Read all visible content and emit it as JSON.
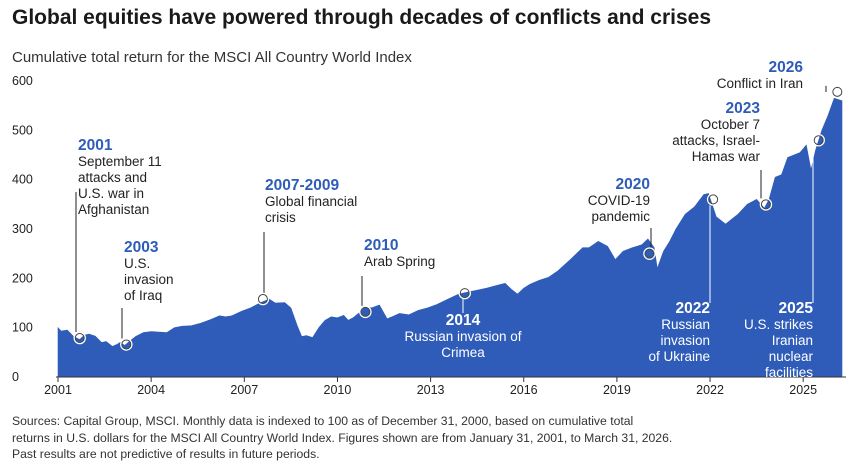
{
  "title": "Global equities have powered through decades of conflicts and crises",
  "subtitle": "Cumulative total return for the MSCI All Country World Index",
  "source_lines": [
    "Sources: Capital Group, MSCI. Monthly data is indexed to 100 as of December 31, 2000, based on cumulative total",
    "returns in U.S. dollars for the MSCI All Country World Index. Figures shown are from January 31, 2001, to March 31, 2026.",
    "Past results are not predictive of results in future periods."
  ],
  "colors": {
    "area": "#2e5cb8",
    "year": "#2e5cb8",
    "text": "#222222",
    "axis": "#333333"
  },
  "chart_data": {
    "type": "area",
    "title": "Global equities have powered through decades of conflicts and crises",
    "subtitle": "Cumulative total return for the MSCI All Country World Index",
    "xlim": [
      2001.0,
      2026.25
    ],
    "ylim": [
      0,
      600
    ],
    "xticks": [
      2001,
      2004,
      2007,
      2010,
      2013,
      2016,
      2019,
      2022,
      2025
    ],
    "yticks": [
      0,
      100,
      200,
      300,
      400,
      500,
      600
    ],
    "grid": false,
    "series": [
      {
        "x": [
          2001.0,
          2001.1,
          2001.3,
          2001.5,
          2001.7,
          2001.85,
          2002.0,
          2002.2,
          2002.4,
          2002.55,
          2002.75,
          2002.9,
          2003.0,
          2003.15,
          2003.3,
          2003.5,
          2003.75,
          2004.0,
          2004.25,
          2004.5,
          2004.75,
          2005.0,
          2005.3,
          2005.6,
          2005.9,
          2006.2,
          2006.4,
          2006.6,
          2006.9,
          2007.2,
          2007.5,
          2007.8,
          2008.0,
          2008.3,
          2008.5,
          2008.7,
          2008.85,
          2009.0,
          2009.2,
          2009.4,
          2009.6,
          2009.8,
          2010.0,
          2010.2,
          2010.35,
          2010.5,
          2010.7,
          2010.9,
          2011.1,
          2011.35,
          2011.6,
          2011.8,
          2012.0,
          2012.3,
          2012.6,
          2012.9,
          2013.2,
          2013.5,
          2013.9,
          2014.2,
          2014.5,
          2014.8,
          2015.1,
          2015.4,
          2015.6,
          2015.8,
          2016.0,
          2016.2,
          2016.5,
          2016.8,
          2017.1,
          2017.5,
          2017.9,
          2018.1,
          2018.4,
          2018.7,
          2018.95,
          2019.2,
          2019.5,
          2019.8,
          2020.0,
          2020.2,
          2020.3,
          2020.5,
          2020.7,
          2020.9,
          2021.2,
          2021.5,
          2021.8,
          2021.95,
          2022.2,
          2022.5,
          2022.7,
          2022.9,
          2023.2,
          2023.5,
          2023.75,
          2023.9,
          2024.1,
          2024.3,
          2024.5,
          2024.7,
          2024.9,
          2025.1,
          2025.25,
          2025.4,
          2025.6,
          2025.8,
          2026.0,
          2026.25
        ],
        "y": [
          100,
          93,
          95,
          82,
          76,
          85,
          87,
          83,
          70,
          72,
          62,
          66,
          70,
          64,
          72,
          82,
          90,
          92,
          91,
          90,
          100,
          103,
          104,
          109,
          116,
          124,
          122,
          124,
          133,
          140,
          150,
          158,
          150,
          151,
          140,
          105,
          82,
          84,
          80,
          100,
          115,
          122,
          120,
          125,
          115,
          120,
          130,
          142,
          140,
          146,
          118,
          123,
          129,
          126,
          135,
          140,
          147,
          156,
          168,
          172,
          176,
          180,
          185,
          190,
          178,
          168,
          180,
          188,
          196,
          202,
          215,
          238,
          262,
          262,
          275,
          265,
          238,
          255,
          262,
          268,
          280,
          262,
          220,
          255,
          275,
          300,
          330,
          345,
          370,
          372,
          325,
          310,
          320,
          330,
          350,
          360,
          342,
          360,
          405,
          410,
          445,
          450,
          455,
          470,
          420,
          460,
          500,
          530,
          565,
          560
        ],
        "name": ""
      }
    ],
    "annotations": [
      {
        "year": "2001",
        "lines": [
          "September 11",
          "attacks and",
          "U.S. war in",
          "Afghanistan"
        ],
        "point": [
          2001.7,
          79
        ],
        "align": "left"
      },
      {
        "year": "2003",
        "lines": [
          "U.S.",
          "invasion",
          "of Iraq"
        ],
        "point": [
          2003.2,
          66
        ],
        "align": "left"
      },
      {
        "year": "2007-2009",
        "lines": [
          "Global financial",
          "crisis"
        ],
        "point": [
          2007.6,
          158
        ],
        "align": "left"
      },
      {
        "year": "2010",
        "lines": [
          "Arab Spring"
        ],
        "point": [
          2010.9,
          132
        ],
        "align": "left"
      },
      {
        "year": "2014",
        "lines": [
          "Russian invasion of",
          "Crimea"
        ],
        "point": [
          2014.1,
          170
        ],
        "align": "center"
      },
      {
        "year": "2020",
        "lines": [
          "COVID-19",
          "pandemic"
        ],
        "point": [
          2020.05,
          250
        ],
        "align": "right"
      },
      {
        "year": "2022",
        "lines": [
          "Russian",
          "invasion",
          "of Ukraine"
        ],
        "point": [
          2022.1,
          360
        ],
        "align": "right"
      },
      {
        "year": "2023",
        "lines": [
          "October 7",
          "attacks, Israel-",
          "Hamas war"
        ],
        "point": [
          2023.8,
          350
        ],
        "align": "right"
      },
      {
        "year": "2025",
        "lines": [
          "U.S. strikes",
          "Iranian",
          "nuclear",
          "facilities"
        ],
        "point": [
          2025.5,
          480
        ],
        "align": "right"
      },
      {
        "year": "2026",
        "lines": [
          "Conflict in Iran"
        ],
        "point": [
          2026.1,
          578
        ],
        "align": "right"
      }
    ]
  }
}
